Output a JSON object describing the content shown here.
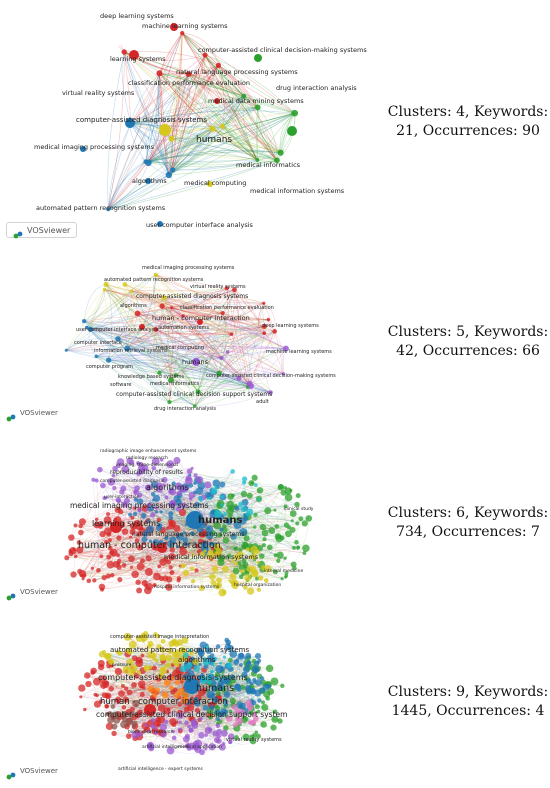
{
  "panels": [
    {
      "caption": "Clusters: 4, Keywords: 21, Occurrences: 90",
      "logo": "VOSviewer",
      "clusters": [
        "#d62728",
        "#2ca02c",
        "#1f77b4",
        "#d6c81b"
      ],
      "labels": [
        {
          "text": "deep learning systems",
          "c": 0
        },
        {
          "text": "machine learning systems",
          "c": 0
        },
        {
          "text": "computer-assisted clinical decision-making systems",
          "c": 1
        },
        {
          "text": "learning systems",
          "c": 0
        },
        {
          "text": "natural language processing systems",
          "c": 3
        },
        {
          "text": "classification performance evaluation",
          "c": 0
        },
        {
          "text": "drug interaction analysis",
          "c": 1
        },
        {
          "text": "virtual reality systems",
          "c": 3
        },
        {
          "text": "medical data mining systems",
          "c": 0
        },
        {
          "text": "computer-assisted diagnosis systems",
          "c": 2
        },
        {
          "text": "humans",
          "c": 1
        },
        {
          "text": "medical imaging processing systems",
          "c": 2
        },
        {
          "text": "medical informatics",
          "c": 1
        },
        {
          "text": "algorithms",
          "c": 2
        },
        {
          "text": "medical computing",
          "c": 3
        },
        {
          "text": "medical information systems",
          "c": 1
        },
        {
          "text": "automated pattern recognition systems",
          "c": 2
        },
        {
          "text": "user-computer interface analysis",
          "c": 2
        }
      ]
    },
    {
      "caption": "Clusters: 5, Keywords: 42, Occurrences: 66",
      "logo": "VOSviewer",
      "clusters": [
        "#d62728",
        "#2ca02c",
        "#1f77b4",
        "#d6c81b",
        "#9b59d0"
      ],
      "labels": [
        {
          "text": "medical imaging processing systems",
          "c": 3
        },
        {
          "text": "automated pattern recognition systems",
          "c": 3
        },
        {
          "text": "virtual reality systems",
          "c": 0
        },
        {
          "text": "computer-assisted diagnosis systems",
          "c": 0
        },
        {
          "text": "algorithms",
          "c": 3
        },
        {
          "text": "classification performance evaluation",
          "c": 0
        },
        {
          "text": "human - computer interaction",
          "c": 0
        },
        {
          "text": "deep learning systems",
          "c": 0
        },
        {
          "text": "user-computer interface analysis",
          "c": 2
        },
        {
          "text": "automation systems",
          "c": 0
        },
        {
          "text": "computer interface",
          "c": 2
        },
        {
          "text": "information retrieval systems",
          "c": 2
        },
        {
          "text": "machine learning systems",
          "c": 4
        },
        {
          "text": "medical computing",
          "c": 4
        },
        {
          "text": "humans",
          "c": 4
        },
        {
          "text": "computer program",
          "c": 2
        },
        {
          "text": "knowledge based systems",
          "c": 1
        },
        {
          "text": "computer-assisted clinical decision-making systems",
          "c": 4
        },
        {
          "text": "software",
          "c": 2
        },
        {
          "text": "medical informatics",
          "c": 1
        },
        {
          "text": "computer-assisted clinical decision support systems",
          "c": 1
        },
        {
          "text": "drug interaction analysis",
          "c": 1
        },
        {
          "text": "adult",
          "c": 4
        }
      ]
    },
    {
      "caption": "Clusters: 6, Keywords: 734, Occurrences: 7",
      "logo": "VOSviewer",
      "clusters": [
        "#d62728",
        "#2ca02c",
        "#1f77b4",
        "#d6c81b",
        "#9b59d0",
        "#17becf"
      ],
      "labels": [
        {
          "text": "radiographic image enhancement systems",
          "c": 4
        },
        {
          "text": "radiology research",
          "c": 4
        },
        {
          "text": "imaging, three-dimensional",
          "c": 4
        },
        {
          "text": "reproducibility of results",
          "c": 4
        },
        {
          "text": "computer-assisted diagnosis",
          "c": 4
        },
        {
          "text": "algorithms",
          "c": 4
        },
        {
          "text": "user-interaction",
          "c": 4
        },
        {
          "text": "medical imaging processing systems",
          "c": 2
        },
        {
          "text": "learning systems",
          "c": 0
        },
        {
          "text": "humans",
          "c": 2
        },
        {
          "text": "clinical study",
          "c": 1
        },
        {
          "text": "natural language processing systems",
          "c": 0
        },
        {
          "text": "human - computer interaction",
          "c": 0
        },
        {
          "text": "medical information systems",
          "c": 0
        },
        {
          "text": "hospital information systems",
          "c": 3
        },
        {
          "text": "hospital organization",
          "c": 1
        },
        {
          "text": "internal medicine",
          "c": 1
        }
      ]
    },
    {
      "caption": "Clusters: 9, Keywords: 1445, Occurrences: 4",
      "logo": "VOSviewer",
      "clusters": [
        "#d62728",
        "#2ca02c",
        "#1f77b4",
        "#d6c81b",
        "#9b59d0",
        "#17becf",
        "#ff7f0e",
        "#8c564b",
        "#e377c2"
      ],
      "labels": [
        {
          "text": "computer-assisted image interpretation",
          "c": 3
        },
        {
          "text": "automated pattern recognition systems",
          "c": 3
        },
        {
          "text": "algorithms",
          "c": 3
        },
        {
          "text": "pressure",
          "c": 3
        },
        {
          "text": "computer-assisted diagnosis systems",
          "c": 0
        },
        {
          "text": "humans",
          "c": 2
        },
        {
          "text": "human - computer interaction",
          "c": 0
        },
        {
          "text": "computer-assisted clinical decision support system",
          "c": 0
        },
        {
          "text": "biomedical research",
          "c": 4
        },
        {
          "text": "virtual reality systems",
          "c": 4
        },
        {
          "text": "artificial intelligence",
          "c": 4
        },
        {
          "text": "medical application",
          "c": 4
        },
        {
          "text": "artificial intelligence - expert systems",
          "c": 0
        }
      ]
    }
  ]
}
